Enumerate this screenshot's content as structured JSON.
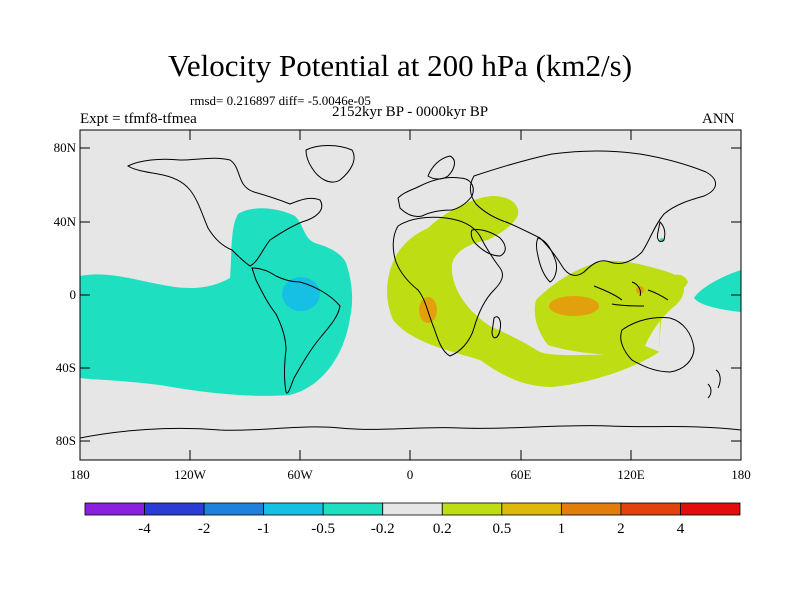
{
  "title": "Velocity Potential at 200 hPa (km2/s)",
  "stats": "rmsd= 0.216897 diff= -5.0046e-05",
  "experiment": "Expt = tfmf8-tfmea",
  "period": "2152kyr BP - 0000kyr BP",
  "season": "ANN",
  "lat_ticks": [
    "80N",
    "40N",
    "0",
    "40S",
    "80S"
  ],
  "lon_ticks": [
    "180",
    "120W",
    "60W",
    "0",
    "60E",
    "120E",
    "180"
  ],
  "colorbar": {
    "labels": [
      "-4",
      "-2",
      "-1",
      "-0.5",
      "-0.2",
      "0.2",
      "0.5",
      "1",
      "2",
      "4"
    ],
    "colors": [
      "#8a1fe0",
      "#2a3bd6",
      "#1d82dc",
      "#16c0e4",
      "#1ee0c0",
      "#e6e6e6",
      "#bedd12",
      "#ddb90c",
      "#e27d0c",
      "#e2420c",
      "#e20c0c"
    ]
  },
  "field_colors": {
    "neutral": "#e6e6e6",
    "cyan": "#1ee0c0",
    "blue": "#16c0e4",
    "green": "#bedd12",
    "orange": "#e27d0c",
    "yellow_orange": "#ddb90c"
  }
}
